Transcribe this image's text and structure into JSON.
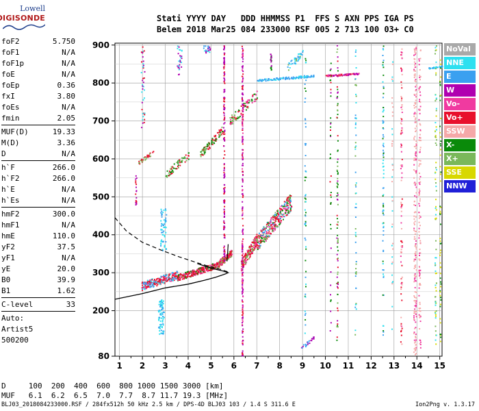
{
  "logo": {
    "line1": "Lowell",
    "line2": "DIGISONDE"
  },
  "header": {
    "line1": "Stati YYYY DAY   DDD HHMMSS P1  FFS S AXN PPS IGA PS",
    "line2": "Belem 2018 Mar25 084 233000 RSF 005 2 713 100 03+ C0"
  },
  "params": [
    {
      "name": "foF2",
      "value": "5.750"
    },
    {
      "name": "foF1",
      "value": "N/A"
    },
    {
      "name": "foF1p",
      "value": "N/A"
    },
    {
      "name": "foE",
      "value": "N/A"
    },
    {
      "name": "foEp",
      "value": "0.36"
    },
    {
      "name": "fxI",
      "value": "3.80"
    },
    {
      "name": "foEs",
      "value": "N/A"
    },
    {
      "name": "fmin",
      "value": "2.05"
    },
    {
      "name": "MUF(D)",
      "value": "19.33"
    },
    {
      "name": "M(D)",
      "value": "3.36"
    },
    {
      "name": "D",
      "value": "N/A"
    },
    {
      "name": "h`F",
      "value": "266.0"
    },
    {
      "name": "h`F2",
      "value": "266.0"
    },
    {
      "name": "h`E",
      "value": "N/A"
    },
    {
      "name": "h`Es",
      "value": "N/A"
    },
    {
      "name": "hmF2",
      "value": "300.0"
    },
    {
      "name": "hmF1",
      "value": "N/A"
    },
    {
      "name": "hmE",
      "value": "110.0"
    },
    {
      "name": "yF2",
      "value": "37.5"
    },
    {
      "name": "yF1",
      "value": "N/A"
    },
    {
      "name": "yE",
      "value": "20.0"
    },
    {
      "name": "B0",
      "value": "39.9"
    },
    {
      "name": "B1",
      "value": "1.62"
    },
    {
      "name": "C-level",
      "value": "33"
    }
  ],
  "auto": {
    "line1": "Auto:",
    "line2": "Artist5",
    "line3": "500200"
  },
  "legend": [
    {
      "label": "NoVal",
      "color": "#a9a9a9"
    },
    {
      "label": "NNE",
      "color": "#2ee0f0"
    },
    {
      "label": "E",
      "color": "#3aa0f0"
    },
    {
      "label": "W",
      "color": "#b000b0"
    },
    {
      "label": "Vo-",
      "color": "#f03aa0"
    },
    {
      "label": "Vo+",
      "color": "#e8102c"
    },
    {
      "label": "SSW",
      "color": "#f5a8a8"
    },
    {
      "label": "X-",
      "color": "#0a8a0a"
    },
    {
      "label": "X+",
      "color": "#7ab85a"
    },
    {
      "label": "SSE",
      "color": "#d8d800"
    },
    {
      "label": "NNW",
      "color": "#2020d8"
    }
  ],
  "footer": {
    "d_line": "D     100  200  400  600  800 1000 1500 3000 [km]",
    "muf_line": "MUF   6.1  6.2  6.5  7.0  7.7  8.7 11.7 19.3 [MHz]",
    "bottom": "BLJ03_2018084233000.RSF / 284fx512h 50 kHz 2.5 km / DPS-4D BLJ03 103 / 1.4 S 311.6 E",
    "version": "Ion2Png v. 1.3.17"
  },
  "chart_data": {
    "type": "scatter",
    "title": "",
    "xlabel": "",
    "ylabel": "",
    "xlim": [
      0.8,
      15.1
    ],
    "ylim": [
      80,
      905
    ],
    "x_ticks": [
      1,
      2,
      3,
      4,
      5,
      6,
      7,
      8,
      9,
      10,
      11,
      12,
      13,
      14,
      15
    ],
    "y_ticks": [
      80,
      200,
      300,
      400,
      500,
      600,
      700,
      800,
      900
    ],
    "grid": true,
    "legend_position": "right",
    "profile_solid": [
      [
        0.8,
        230
      ],
      [
        2.0,
        245
      ],
      [
        3.0,
        260
      ],
      [
        4.0,
        270
      ],
      [
        4.7,
        280
      ],
      [
        5.2,
        288
      ],
      [
        5.6,
        296
      ],
      [
        5.75,
        300
      ],
      [
        5.55,
        304
      ],
      [
        5.0,
        312
      ],
      [
        4.4,
        324
      ]
    ],
    "profile_dashed": [
      [
        0.8,
        445
      ],
      [
        1.3,
        410
      ],
      [
        2.0,
        380
      ],
      [
        2.8,
        360
      ],
      [
        3.6,
        342
      ],
      [
        4.3,
        328
      ],
      [
        4.9,
        317
      ],
      [
        5.4,
        309
      ],
      [
        5.75,
        302
      ]
    ],
    "traces": [
      {
        "name": "O trace F2",
        "x_start": 1.95,
        "x_end": 5.8,
        "h_start": 268,
        "h_end": 345,
        "color": "#e8102c"
      },
      {
        "name": "F2 steep rise",
        "x_start": 6.3,
        "x_end": 8.5,
        "h_start": 320,
        "h_end": 500,
        "color": "#e8102c"
      },
      {
        "name": "multi-hop 2F",
        "x_start": 3.0,
        "x_end": 7.0,
        "h_start": 560,
        "h_end": 760,
        "color": "#7ab85a"
      }
    ]
  }
}
